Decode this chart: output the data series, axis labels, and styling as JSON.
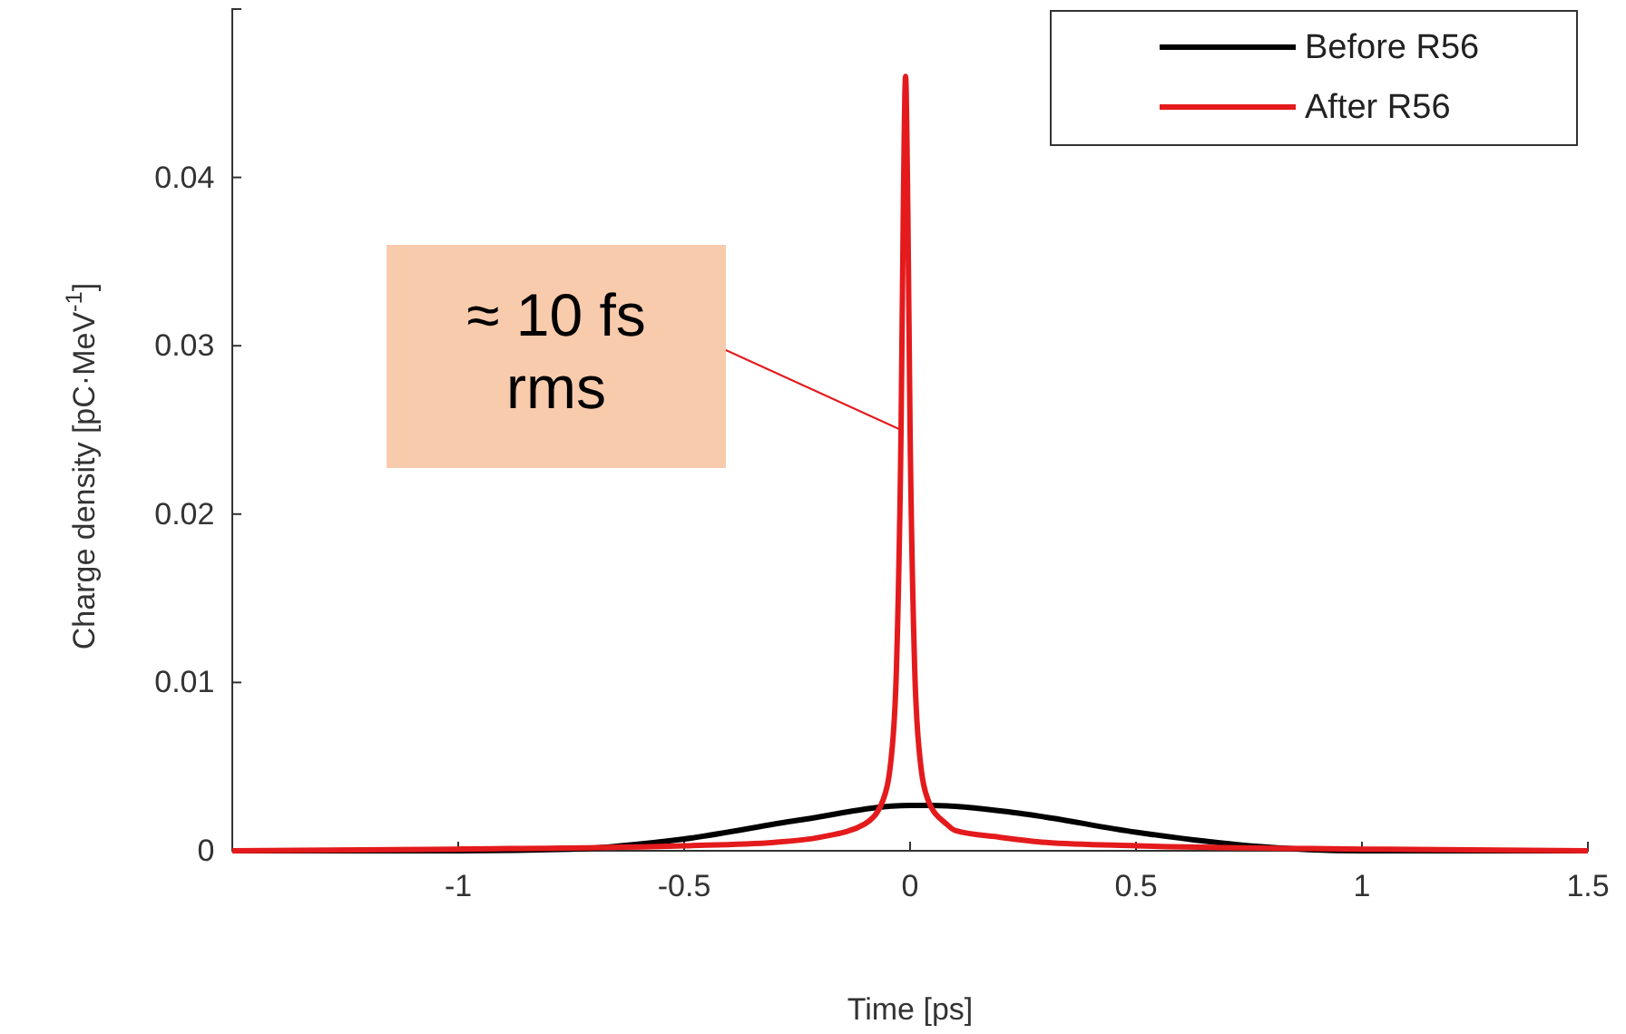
{
  "chart_data": {
    "type": "line",
    "xlabel": "Time [ps]",
    "ylabel": "Charge density [pC·MeV$^{-1}$]",
    "xlim": [
      -1.5,
      1.5
    ],
    "xticks": [
      -1,
      -0.5,
      0,
      0.5,
      1,
      1.5
    ],
    "ylim": [
      0,
      0.05
    ],
    "yticks": [
      0,
      0.01,
      0.02,
      0.03,
      0.04
    ],
    "grid": false,
    "legend": "top right",
    "line_style": "solid",
    "marker": "none",
    "series": [
      {
        "name": "Before R56",
        "color": "#000000",
        "x": [
          -1.5,
          -1.25,
          -1,
          -0.75,
          -0.5,
          -0.25,
          0,
          0.05,
          0.25,
          0.5,
          0.75,
          1,
          1.25,
          1.5
        ],
        "values": [
          0,
          0,
          0,
          0.0001,
          0.0007,
          0.0018,
          0.0027,
          0.0027,
          0.0022,
          0.0011,
          0.0003,
          0,
          0,
          0
        ]
      },
      {
        "name": "After R56",
        "color": "#e41a1c",
        "x": [
          -1.5,
          -1,
          -0.5,
          -0.3,
          -0.2,
          -0.1,
          -0.06,
          -0.04,
          -0.03,
          -0.02,
          -0.015,
          -0.01,
          -0.005,
          0,
          0.01,
          0.02,
          0.04,
          0.08,
          0.1,
          0.2,
          0.3,
          0.5,
          1,
          1.5
        ],
        "values": [
          0,
          0.0001,
          0.0003,
          0.0005,
          0.0008,
          0.0016,
          0.003,
          0.006,
          0.011,
          0.025,
          0.038,
          0.046,
          0.038,
          0.025,
          0.011,
          0.006,
          0.003,
          0.0016,
          0.0012,
          0.0008,
          0.0005,
          0.0003,
          0.0001,
          0
        ]
      }
    ],
    "annotations": [
      "≈ 10 fs\nrms"
    ]
  }
}
